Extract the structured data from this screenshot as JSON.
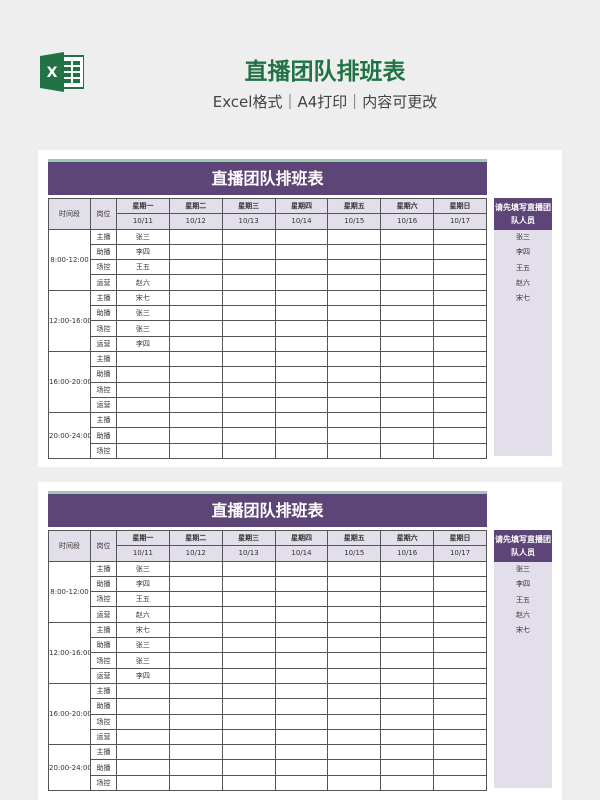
{
  "header": {
    "title": "直播团队排班表",
    "subtitle": "Excel格式｜A4打印｜内容可更改",
    "logo_icon": "excel-icon",
    "brand_color": "#217346"
  },
  "sheet": {
    "title": "直播团队排班表",
    "col_time": "时间段",
    "col_post": "岗位",
    "days": [
      "星期一",
      "星期二",
      "星期三",
      "星期四",
      "星期五",
      "星期六",
      "星期日"
    ],
    "dates": [
      "10/11",
      "10/12",
      "10/13",
      "10/14",
      "10/15",
      "10/16",
      "10/17"
    ],
    "blocks": [
      {
        "time": "8:00-12:00",
        "rows": [
          {
            "post": "主播",
            "mon": "张三"
          },
          {
            "post": "助播",
            "mon": "李四"
          },
          {
            "post": "场控",
            "mon": "王五"
          },
          {
            "post": "运营",
            "mon": "赵六"
          }
        ]
      },
      {
        "time": "12:00-16:00",
        "rows": [
          {
            "post": "主播",
            "mon": "宋七"
          },
          {
            "post": "助播",
            "mon": "张三"
          },
          {
            "post": "场控",
            "mon": "张三"
          },
          {
            "post": "运营",
            "mon": "李四"
          }
        ]
      },
      {
        "time": "16:00-20:00",
        "rows": [
          {
            "post": "主播",
            "mon": ""
          },
          {
            "post": "助播",
            "mon": ""
          },
          {
            "post": "场控",
            "mon": ""
          },
          {
            "post": "运营",
            "mon": ""
          }
        ]
      },
      {
        "time": "20:00-24:00",
        "rows": [
          {
            "post": "主播",
            "mon": ""
          },
          {
            "post": "助播",
            "mon": ""
          },
          {
            "post": "场控",
            "mon": ""
          }
        ]
      }
    ],
    "side_title": "请先填写直播团队人员",
    "members": [
      "张三",
      "李四",
      "王五",
      "赵六",
      "宋七"
    ],
    "header_color": "#5e4577",
    "header_bg": "#e3dfea"
  }
}
